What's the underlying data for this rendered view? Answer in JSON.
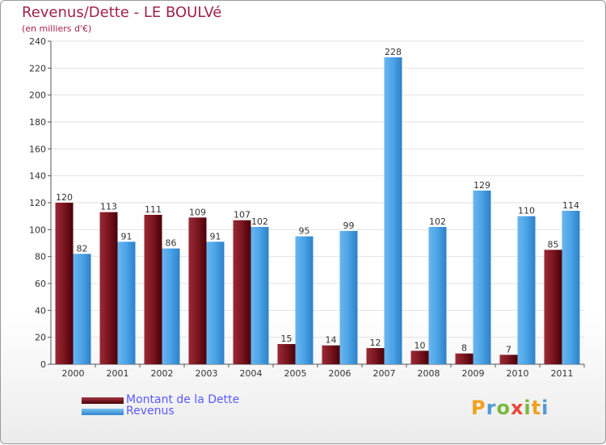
{
  "header": {
    "title": "Revenus/Dette - LE BOULVé",
    "subtitle": "(en milliers d'€)"
  },
  "legend": [
    {
      "label": "Montant de la Dette",
      "color": "#6e0b14"
    },
    {
      "label": "Revenus",
      "color": "#4aa3e6"
    }
  ],
  "logo": {
    "letters": [
      "P",
      "r",
      "o",
      "x",
      "i",
      "t",
      "i"
    ],
    "colors": [
      "#f2a01f",
      "#4f9ad6",
      "#7ab83f",
      "#e8483c",
      "#7ab83f",
      "#f2a01f",
      "#4f9ad6"
    ]
  },
  "chart_data": {
    "type": "bar",
    "title": "Revenus/Dette - LE BOULVé",
    "ylabel": "(en milliers d'€)",
    "categories": [
      "2000",
      "2001",
      "2002",
      "2003",
      "2004",
      "2005",
      "2006",
      "2007",
      "2008",
      "2009",
      "2010",
      "2011"
    ],
    "series": [
      {
        "name": "Montant de la Dette",
        "color": "#6e0b14",
        "values": [
          120,
          113,
          111,
          109,
          107,
          15,
          14,
          12,
          10,
          8,
          7,
          85
        ]
      },
      {
        "name": "Revenus",
        "color": "#4aa3e6",
        "values": [
          82,
          91,
          86,
          91,
          102,
          95,
          99,
          228,
          102,
          129,
          110,
          114
        ]
      }
    ],
    "ylim": [
      0,
      240
    ],
    "yticks": [
      0,
      20,
      40,
      60,
      80,
      100,
      120,
      140,
      160,
      180,
      200,
      220,
      240
    ],
    "grid": true,
    "legend_position": "bottom-left"
  }
}
